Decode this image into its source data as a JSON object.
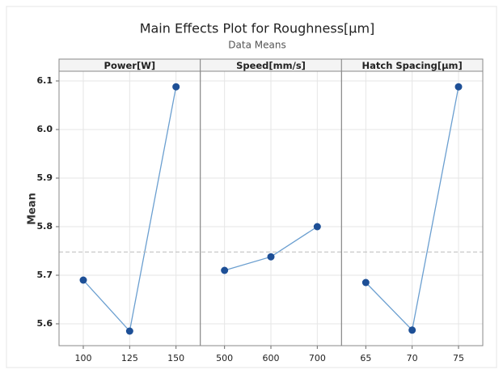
{
  "chart_data": {
    "type": "line",
    "title": "Main Effects Plot for Roughness[µm]",
    "subtitle": "Data Means",
    "y_label": "Mean",
    "ylim": [
      5.555,
      6.12
    ],
    "yticks": [
      5.6,
      5.7,
      5.8,
      5.9,
      {
        "value": 6,
        "label": "6.0"
      },
      6.1
    ],
    "reference_line": 5.748,
    "grid": true,
    "line_color": "#6b9fd0",
    "marker_color": "#1d4f96",
    "panels": [
      {
        "name": "Power[W]",
        "categories": [
          100,
          125,
          150
        ],
        "values": [
          5.69,
          5.585,
          6.088
        ]
      },
      {
        "name": "Speed[mm/s]",
        "categories": [
          500,
          600,
          700
        ],
        "values": [
          5.71,
          5.738,
          5.8
        ]
      },
      {
        "name": "Hatch Spacing[µm]",
        "categories": [
          65,
          70,
          75
        ],
        "values": [
          5.685,
          5.587,
          6.088
        ]
      }
    ]
  }
}
